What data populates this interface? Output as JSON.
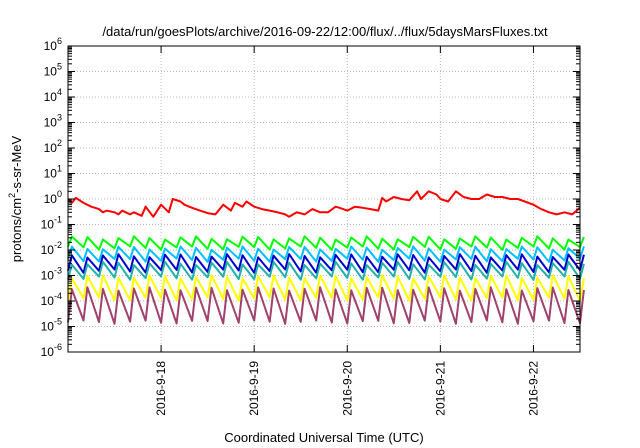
{
  "chart_data": {
    "type": "line",
    "title": "/data/run/goesPlots/archive/2016-09-22/12:00/flux/../flux/5daysMarsFluxes.txt",
    "xlabel": "Coordinated Universal Time (UTC)",
    "ylabel": {
      "prefix": "protons/cm",
      "sup": "2",
      "suffix": "-s-sr-MeV"
    },
    "yscale": "log",
    "ylim_exponents": [
      -6,
      6
    ],
    "y_tick_base": "10",
    "y_tick_exponents": [
      "6",
      "5",
      "4",
      "3",
      "2",
      "1",
      "0",
      "-1",
      "-2",
      "-3",
      "-4",
      "-5",
      "-6"
    ],
    "xlim_days": [
      "2016-09-17T00:00",
      "2016-09-22T12:00"
    ],
    "x_tick_dates": [
      "2016-09-18",
      "2016-09-19",
      "2016-09-20",
      "2016-09-21",
      "2016-09-22"
    ],
    "x_tick_labels": [
      "2016-9-18",
      "2016-9-19",
      "2016-9-20",
      "2016-9-21",
      "2016-9-22"
    ],
    "grid": true,
    "legend": "none",
    "series": [
      {
        "color": "#ff0000",
        "line_width": 2,
        "x_dates": [
          "2016-09-17T00:00",
          "2016-09-17T01:00",
          "2016-09-17T02:00",
          "2016-09-17T04:00",
          "2016-09-17T06:00",
          "2016-09-17T08:00",
          "2016-09-17T09:00",
          "2016-09-17T10:00",
          "2016-09-17T12:00",
          "2016-09-17T13:00",
          "2016-09-17T14:00",
          "2016-09-17T16:00",
          "2016-09-17T17:00",
          "2016-09-17T19:00",
          "2016-09-17T20:00",
          "2016-09-17T22:00",
          "2016-09-18T00:00",
          "2016-09-18T02:00",
          "2016-09-18T03:00",
          "2016-09-18T05:00",
          "2016-09-18T06:00",
          "2016-09-18T08:00",
          "2016-09-18T10:00",
          "2016-09-18T12:00",
          "2016-09-18T14:00",
          "2016-09-18T16:00",
          "2016-09-18T18:00",
          "2016-09-18T19:00",
          "2016-09-18T21:00",
          "2016-09-18T22:00",
          "2016-09-19T00:00",
          "2016-09-19T02:00",
          "2016-09-19T04:00",
          "2016-09-19T06:00",
          "2016-09-19T08:00",
          "2016-09-19T09:00",
          "2016-09-19T11:00",
          "2016-09-19T13:00",
          "2016-09-19T15:00",
          "2016-09-19T17:00",
          "2016-09-19T19:00",
          "2016-09-19T21:00",
          "2016-09-19T22:00",
          "2016-09-20T00:00",
          "2016-09-20T02:00",
          "2016-09-20T04:00",
          "2016-09-20T06:00",
          "2016-09-20T08:00",
          "2016-09-20T09:00",
          "2016-09-20T10:00",
          "2016-09-20T12:00",
          "2016-09-20T14:00",
          "2016-09-20T16:00",
          "2016-09-20T18:00",
          "2016-09-20T19:00",
          "2016-09-20T21:00",
          "2016-09-20T23:00",
          "2016-09-21T00:00",
          "2016-09-21T02:00",
          "2016-09-21T04:00",
          "2016-09-21T06:00",
          "2016-09-21T08:00",
          "2016-09-21T10:00",
          "2016-09-21T12:00",
          "2016-09-21T14:00",
          "2016-09-21T16:00",
          "2016-09-21T18:00",
          "2016-09-21T20:00",
          "2016-09-22T00:00",
          "2016-09-22T02:00",
          "2016-09-22T04:00",
          "2016-09-22T06:00",
          "2016-09-22T08:00",
          "2016-09-22T10:00",
          "2016-09-22T12:00"
        ],
        "y": [
          1.0,
          0.7,
          1.1,
          0.7,
          0.5,
          0.4,
          0.3,
          0.35,
          0.3,
          0.25,
          0.35,
          0.25,
          0.3,
          0.22,
          0.5,
          0.2,
          0.6,
          0.3,
          1.0,
          0.8,
          0.6,
          0.45,
          0.35,
          0.28,
          0.25,
          0.6,
          0.35,
          0.7,
          0.5,
          0.8,
          0.5,
          0.4,
          0.35,
          0.3,
          0.25,
          0.2,
          0.3,
          0.25,
          0.4,
          0.3,
          0.3,
          0.5,
          0.45,
          0.35,
          0.5,
          0.45,
          0.4,
          0.35,
          1.1,
          0.8,
          1.2,
          1.0,
          0.9,
          2.0,
          1.0,
          2.0,
          1.5,
          1.0,
          0.8,
          2.0,
          1.2,
          1.0,
          1.0,
          1.5,
          1.2,
          1.2,
          1.0,
          1.0,
          0.6,
          0.4,
          0.3,
          0.25,
          0.3,
          0.25,
          0.45
        ]
      },
      {
        "color": "#00ff00",
        "line_width": 2,
        "sawtooth": {
          "start": "2016-09-17T00:00",
          "end": "2016-09-22T12:00",
          "period_hours": 4,
          "peak": 0.03,
          "trough": 0.012
        }
      },
      {
        "color": "#00bfff",
        "line_width": 2,
        "sawtooth": {
          "start": "2016-09-17T00:00",
          "end": "2016-09-22T12:00",
          "period_hours": 4,
          "peak": 0.012,
          "trough": 0.004
        }
      },
      {
        "color": "#0000cd",
        "line_width": 2,
        "sawtooth": {
          "start": "2016-09-17T00:00",
          "end": "2016-09-22T12:00",
          "period_hours": 4,
          "peak": 0.006,
          "trough": 0.0015
        }
      },
      {
        "color": "#20b2aa",
        "line_width": 2,
        "sawtooth": {
          "start": "2016-09-17T00:00",
          "end": "2016-09-22T12:00",
          "period_hours": 4,
          "peak": 0.003,
          "trough": 0.0008
        }
      },
      {
        "color": "#ffff00",
        "line_width": 2,
        "sawtooth": {
          "start": "2016-09-17T00:00",
          "end": "2016-09-22T12:00",
          "period_hours": 4,
          "peak": 0.0009,
          "trough": 0.00012
        }
      },
      {
        "color": "#a0416e",
        "line_width": 2,
        "sawtooth": {
          "start": "2016-09-17T00:00",
          "end": "2016-09-22T12:00",
          "period_hours": 4,
          "peak": 0.0003,
          "trough": 1.5e-05
        }
      }
    ]
  }
}
